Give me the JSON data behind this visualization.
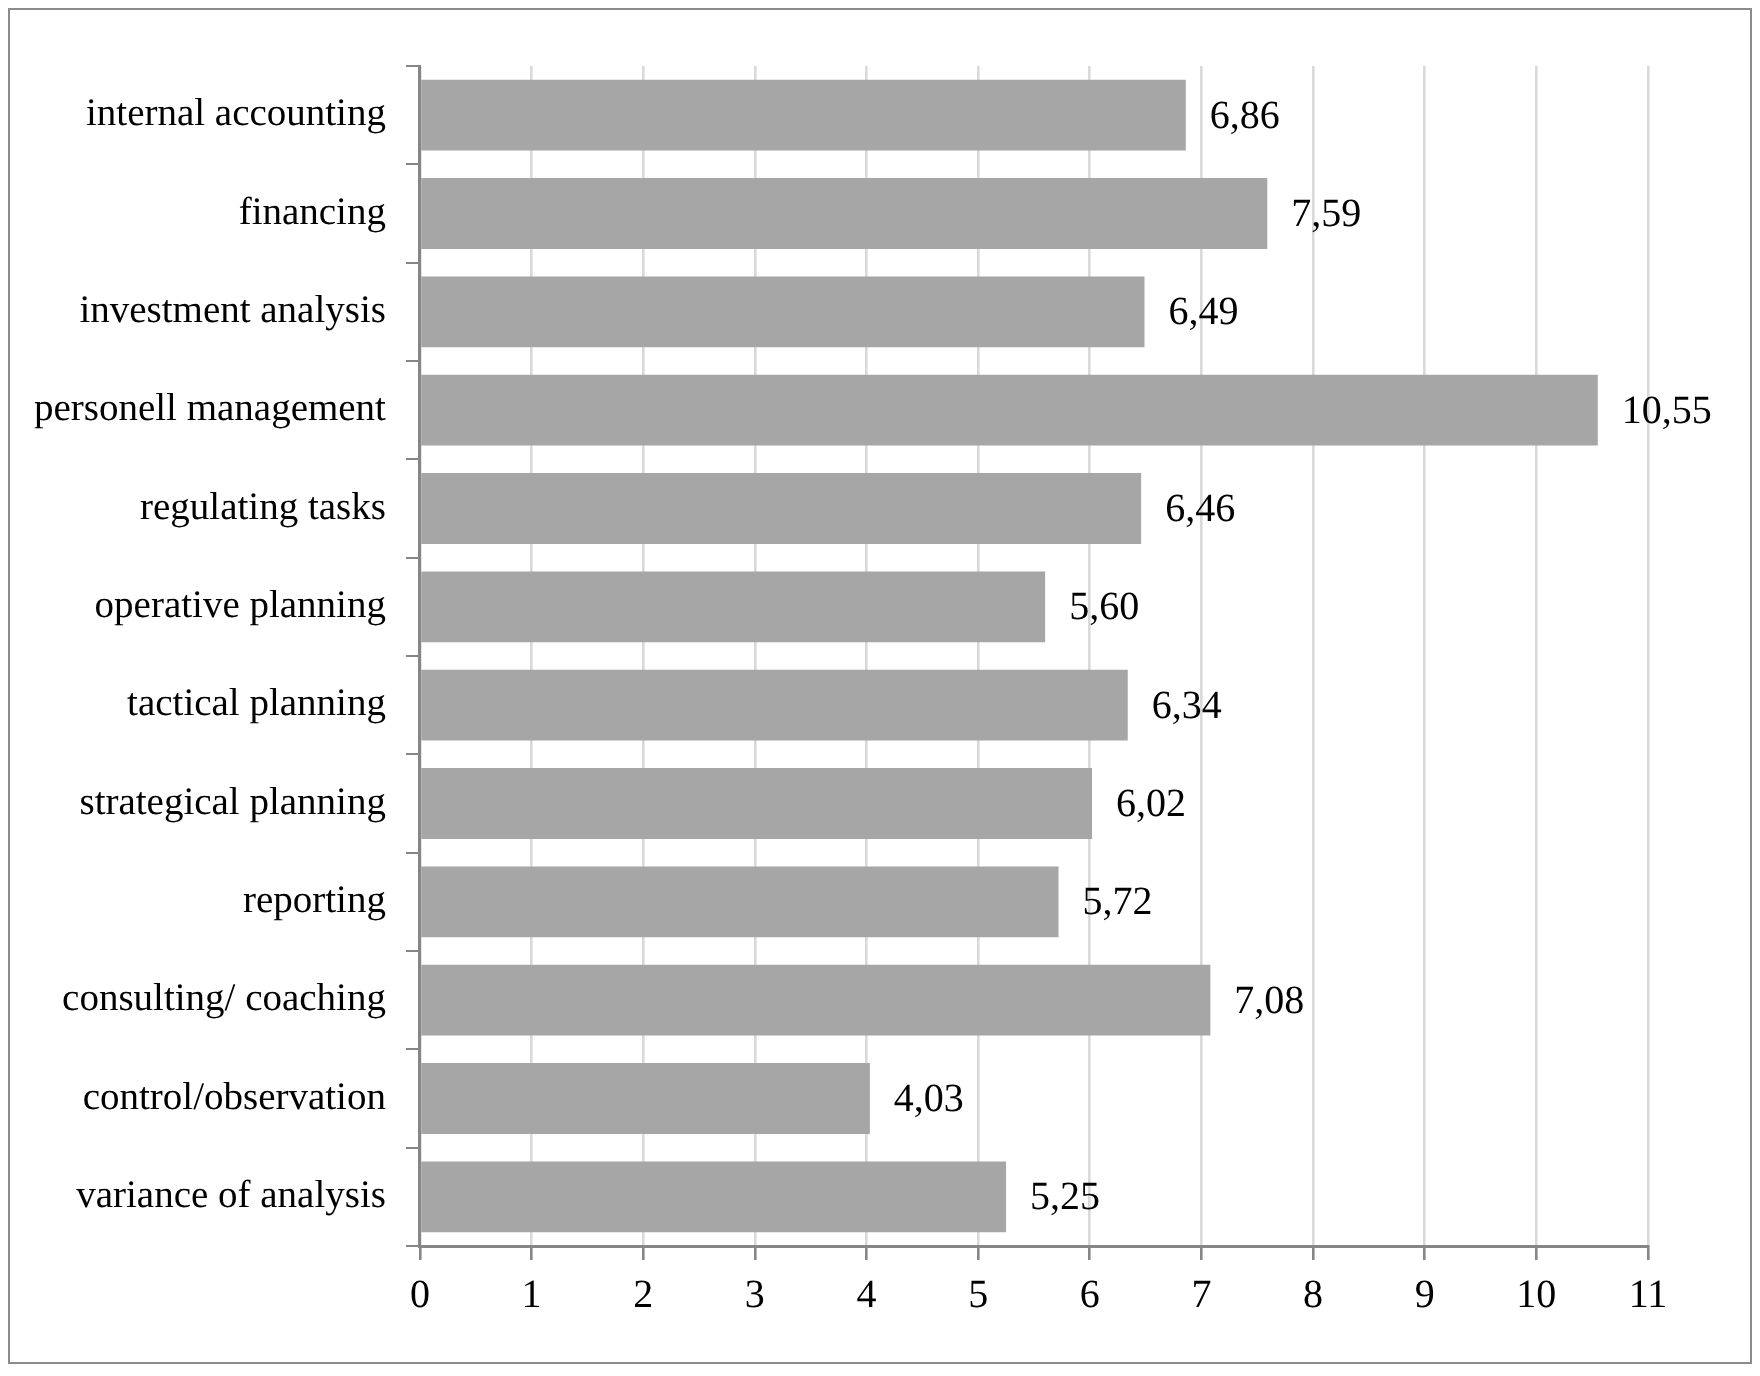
{
  "chart_data": {
    "type": "bar",
    "orientation": "horizontal",
    "categories": [
      "internal accounting",
      "financing",
      "investment analysis",
      "personell management",
      "regulating tasks",
      "operative planning",
      "tactical planning",
      "strategical planning",
      "reporting",
      "consulting/ coaching",
      "control/observation",
      "variance of analysis"
    ],
    "values": [
      6.86,
      7.59,
      6.49,
      10.55,
      6.46,
      5.6,
      6.34,
      6.02,
      5.72,
      7.08,
      4.03,
      5.25
    ],
    "value_labels": [
      "6,86",
      "7,59",
      "6,49",
      "10,55",
      "6,46",
      "5,60",
      "6,34",
      "6,02",
      "5,72",
      "7,08",
      "4,03",
      "5,25"
    ],
    "color": "#a6a6a6",
    "xlim": [
      0,
      11
    ],
    "xticks": [
      0,
      1,
      2,
      3,
      4,
      5,
      6,
      7,
      8,
      9,
      10,
      11
    ],
    "grid": "x"
  }
}
